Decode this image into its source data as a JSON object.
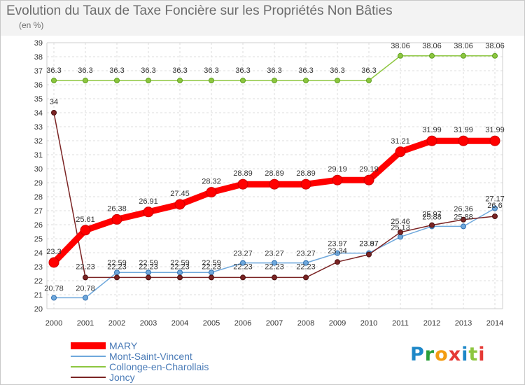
{
  "chart_data": {
    "type": "line",
    "title": "Evolution du Taux de Taxe Foncière sur les Propriétés Non Bâties",
    "ylabel": "(en %)",
    "xlabel": "",
    "categories": [
      "2000",
      "2001",
      "2002",
      "2003",
      "2004",
      "2005",
      "2006",
      "2007",
      "2008",
      "2009",
      "2010",
      "2011",
      "2012",
      "2013",
      "2014"
    ],
    "ylim": [
      20,
      39
    ],
    "yticks": [
      20,
      21,
      22,
      23,
      24,
      25,
      26,
      27,
      28,
      29,
      30,
      31,
      32,
      33,
      34,
      35,
      36,
      37,
      38,
      39
    ],
    "grid": true,
    "series": [
      {
        "name": "MARY",
        "color": "#ff0000",
        "values": [
          23.3,
          25.61,
          26.38,
          26.91,
          27.45,
          28.32,
          28.89,
          28.89,
          28.89,
          29.19,
          29.19,
          31.21,
          31.99,
          31.99,
          31.99
        ],
        "labels": [
          "23.3",
          "25.61",
          "26.38",
          "26.91",
          "27.45",
          "28.32",
          "28.89",
          "28.89",
          "28.89",
          "29.19",
          "29.19",
          "31.21",
          "31.99",
          "31.99",
          "31.99"
        ]
      },
      {
        "name": "Mont-Saint-Vincent",
        "color": "#6fa8dc",
        "values": [
          20.78,
          20.78,
          22.59,
          22.59,
          22.59,
          22.59,
          23.27,
          23.27,
          23.27,
          23.97,
          23.97,
          25.13,
          25.88,
          25.88,
          27.17
        ],
        "labels": [
          "20.78",
          "20.78",
          "22.59",
          "22.59",
          "22.59",
          "22.59",
          "23.27",
          "23.27",
          "23.27",
          "23.97",
          "23.97",
          "25.13",
          "25.88",
          "25.88",
          "27.17"
        ]
      },
      {
        "name": "Collonge-en-Charollais",
        "color": "#8dc63f",
        "values": [
          36.3,
          36.3,
          36.3,
          36.3,
          36.3,
          36.3,
          36.3,
          36.3,
          36.3,
          36.3,
          36.3,
          38.06,
          38.06,
          38.06,
          38.06
        ],
        "labels": [
          "36.3",
          "36.3",
          "36.3",
          "36.3",
          "36.3",
          "36.3",
          "36.3",
          "36.3",
          "36.3",
          "36.3",
          "36.3",
          "38.06",
          "38.06",
          "38.06",
          "38.06"
        ]
      },
      {
        "name": "Joncy",
        "color": "#7b2424",
        "values": [
          34,
          22.23,
          22.23,
          22.23,
          22.23,
          22.23,
          22.23,
          22.23,
          22.23,
          23.34,
          23.87,
          25.46,
          25.97,
          26.36,
          26.6
        ],
        "labels": [
          "34",
          "22.23",
          "22.23",
          "22.23",
          "22.23",
          "22.23",
          "22.23",
          "22.23",
          "22.23",
          "23.34",
          "23.87",
          "25.46",
          "25.97",
          "26.36",
          "26.6"
        ]
      }
    ],
    "legend_position": "bottom-left"
  },
  "logo": {
    "letters": [
      "P",
      "r",
      "o",
      "x",
      "i",
      "t",
      "i"
    ]
  }
}
